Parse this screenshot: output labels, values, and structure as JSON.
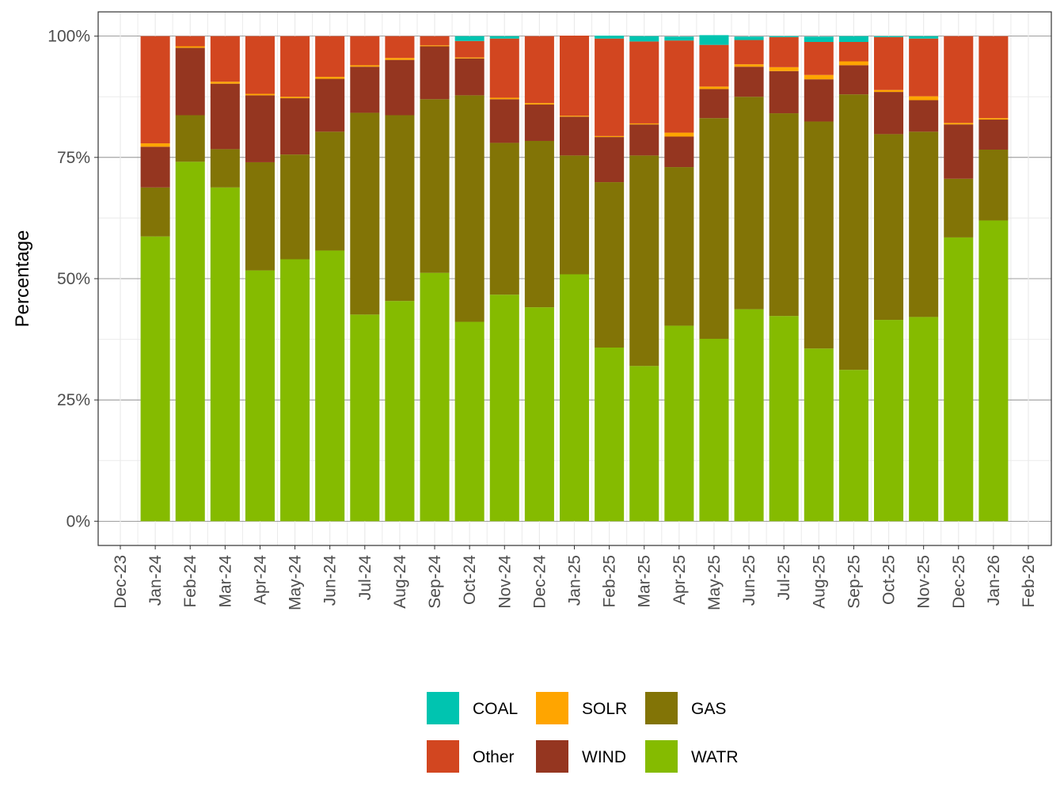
{
  "chart_data": {
    "type": "stacked-bar",
    "y_label": "Percentage",
    "categories": [
      "Dec-23",
      "Jan-24",
      "Feb-24",
      "Mar-24",
      "Apr-24",
      "May-24",
      "Jun-24",
      "Jul-24",
      "Aug-24",
      "Sep-24",
      "Oct-24",
      "Nov-24",
      "Dec-24",
      "Jan-25",
      "Feb-25",
      "Mar-25",
      "Apr-25",
      "May-25",
      "Jun-25",
      "Jul-25",
      "Aug-25",
      "Sep-25",
      "Oct-25",
      "Nov-25",
      "Dec-25",
      "Jan-26",
      "Feb-26"
    ],
    "series": [
      {
        "name": "WATR",
        "color": "#85bb00",
        "values": [
          null,
          58.7,
          74.1,
          68.8,
          51.7,
          54.0,
          55.8,
          42.6,
          45.4,
          51.2,
          41.1,
          46.7,
          44.1,
          50.9,
          35.8,
          32.0,
          40.3,
          37.6,
          43.7,
          42.3,
          35.6,
          31.2,
          41.5,
          42.1,
          58.5,
          62.0,
          null
        ]
      },
      {
        "name": "GAS",
        "color": "#827406",
        "values": [
          null,
          10.1,
          9.6,
          7.9,
          22.3,
          21.6,
          24.5,
          41.6,
          38.3,
          35.8,
          46.7,
          31.3,
          34.3,
          24.5,
          34.1,
          43.4,
          32.7,
          45.5,
          43.8,
          41.8,
          46.8,
          56.8,
          38.3,
          38.2,
          12.1,
          14.6,
          null
        ]
      },
      {
        "name": "WIND",
        "color": "#953620",
        "values": [
          null,
          8.4,
          13.9,
          13.5,
          13.8,
          11.6,
          10.9,
          9.5,
          11.4,
          10.9,
          7.6,
          9.0,
          7.5,
          8.0,
          9.3,
          6.4,
          6.3,
          6.0,
          6.2,
          8.7,
          8.7,
          6.0,
          8.7,
          6.5,
          11.2,
          6.2,
          null
        ]
      },
      {
        "name": "SOLR",
        "color": "#ffa500",
        "values": [
          null,
          0.7,
          0.3,
          0.4,
          0.3,
          0.3,
          0.4,
          0.3,
          0.4,
          0.2,
          0.2,
          0.3,
          0.3,
          0.2,
          0.2,
          0.2,
          0.8,
          0.5,
          0.5,
          0.8,
          0.9,
          0.8,
          0.4,
          0.8,
          0.3,
          0.3,
          null
        ]
      },
      {
        "name": "Other",
        "color": "#d24620",
        "values": [
          null,
          22.1,
          2.1,
          9.4,
          11.9,
          12.5,
          8.4,
          6.0,
          4.5,
          1.9,
          3.4,
          12.2,
          13.8,
          16.5,
          20.1,
          16.9,
          19.0,
          8.6,
          5.0,
          6.2,
          6.8,
          4.0,
          10.9,
          11.9,
          17.9,
          16.9,
          null
        ]
      },
      {
        "name": "COAL",
        "color": "#00c4b0",
        "values": [
          null,
          0,
          0,
          0,
          0,
          0,
          0,
          0,
          0,
          0,
          1.0,
          0.5,
          0,
          0,
          0.6,
          1.1,
          0.8,
          2.0,
          0.7,
          0.2,
          1.1,
          1.2,
          0.2,
          0.5,
          0,
          0,
          null
        ]
      }
    ],
    "ylim": [
      -5,
      105
    ],
    "yticks": [
      {
        "value": 0,
        "label": "0%"
      },
      {
        "value": 25,
        "label": "25%"
      },
      {
        "value": 50,
        "label": "50%"
      },
      {
        "value": 75,
        "label": "75%"
      },
      {
        "value": 100,
        "label": "100%"
      }
    ],
    "grid": true
  }
}
